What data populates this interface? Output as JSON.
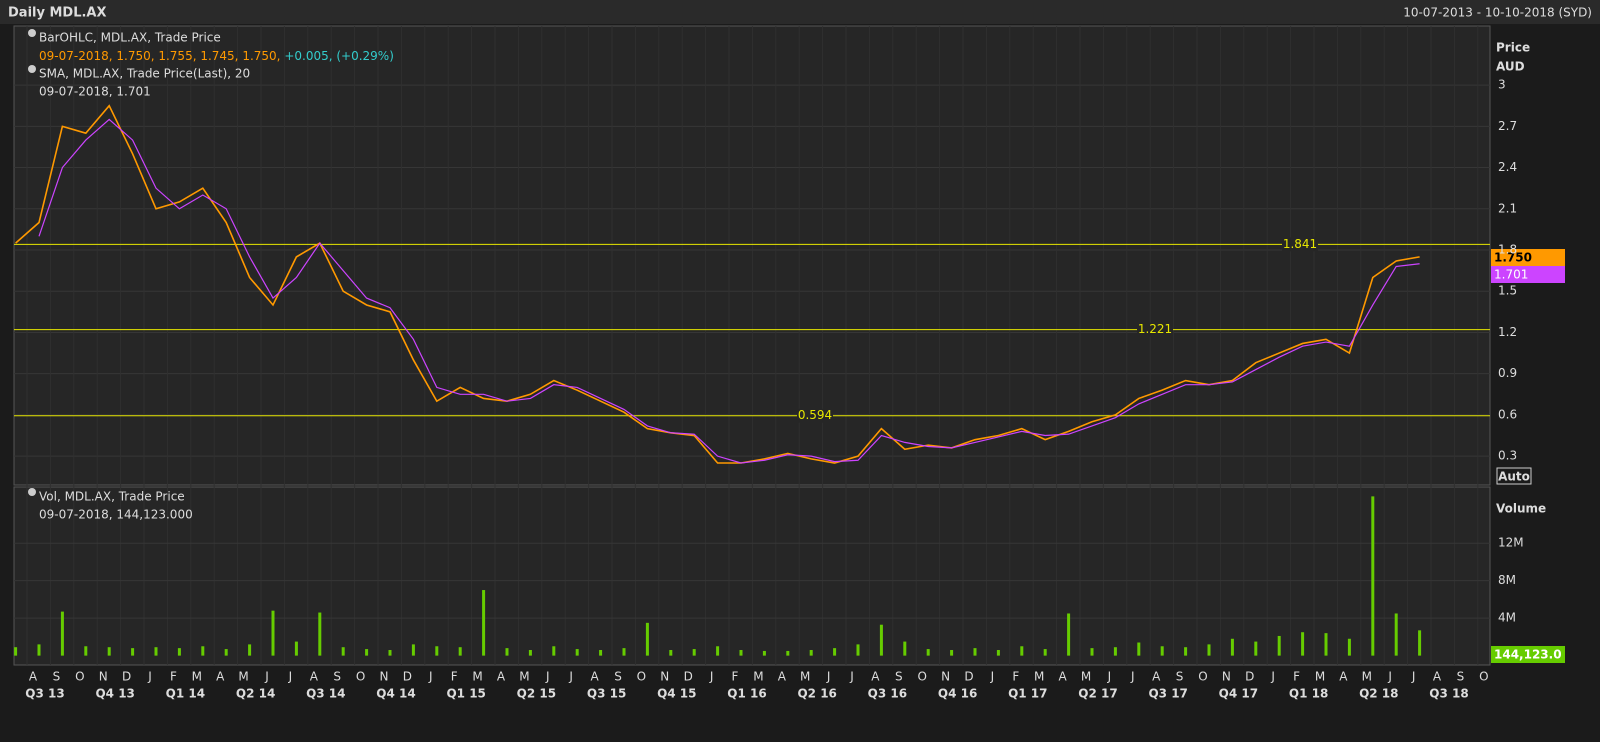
{
  "header": {
    "title": "Daily MDL.AX",
    "range": "10-07-2013 - 10-10-2018 (SYD)"
  },
  "legend": {
    "ohlc_values": "09-07-2018, 1.750, 1.755, 1.745, 1.750,",
    "ohlc_change": "+0.005, (+0.29%)",
    "sma_values": "09-07-2018, 1.701",
    "vol_values": "09-07-2018, 144,123.000"
  },
  "axis_labels": {
    "price": "Price",
    "currency": "AUD",
    "auto": "Auto",
    "volume": "Volume"
  },
  "badges": {
    "last": "1.750",
    "sma": "1.701",
    "volume": "144,123.0"
  },
  "chart_data": [
    {
      "type": "line",
      "x": [
        "2013-07",
        "2013-08",
        "2013-09",
        "2013-10",
        "2013-11",
        "2013-12",
        "2014-01",
        "2014-02",
        "2014-03",
        "2014-04",
        "2014-05",
        "2014-06",
        "2014-07",
        "2014-08",
        "2014-09",
        "2014-10",
        "2014-11",
        "2014-12",
        "2015-01",
        "2015-02",
        "2015-03",
        "2015-04",
        "2015-05",
        "2015-06",
        "2015-07",
        "2015-08",
        "2015-09",
        "2015-10",
        "2015-11",
        "2015-12",
        "2016-01",
        "2016-02",
        "2016-03",
        "2016-04",
        "2016-05",
        "2016-06",
        "2016-07",
        "2016-08",
        "2016-09",
        "2016-10",
        "2016-11",
        "2016-12",
        "2017-01",
        "2017-02",
        "2017-03",
        "2017-04",
        "2017-05",
        "2017-06",
        "2017-07",
        "2017-08",
        "2017-09",
        "2017-10",
        "2017-11",
        "2017-12",
        "2018-01",
        "2018-02",
        "2018-03",
        "2018-04",
        "2018-05",
        "2018-06",
        "2018-07"
      ],
      "series": [
        {
          "name": "BarOHLC, MDL.AX, Trade Price",
          "color": "#ff9900",
          "values": [
            1.85,
            2.0,
            2.7,
            2.65,
            2.85,
            2.5,
            2.1,
            2.15,
            2.25,
            2.0,
            1.6,
            1.4,
            1.75,
            1.85,
            1.5,
            1.4,
            1.35,
            1.0,
            0.7,
            0.8,
            0.72,
            0.7,
            0.75,
            0.85,
            0.78,
            0.7,
            0.62,
            0.5,
            0.47,
            0.45,
            0.25,
            0.25,
            0.28,
            0.32,
            0.28,
            0.25,
            0.3,
            0.5,
            0.35,
            0.38,
            0.36,
            0.42,
            0.45,
            0.5,
            0.42,
            0.48,
            0.55,
            0.6,
            0.72,
            0.78,
            0.85,
            0.82,
            0.85,
            0.98,
            1.05,
            1.12,
            1.15,
            1.05,
            1.6,
            1.72,
            1.75
          ]
        },
        {
          "name": "SMA, MDL.AX, Trade Price(Last),  20",
          "color": "#cc44ff",
          "values": [
            null,
            1.9,
            2.4,
            2.6,
            2.75,
            2.6,
            2.25,
            2.1,
            2.2,
            2.1,
            1.75,
            1.45,
            1.6,
            1.85,
            1.65,
            1.45,
            1.38,
            1.15,
            0.8,
            0.75,
            0.75,
            0.7,
            0.72,
            0.82,
            0.8,
            0.72,
            0.64,
            0.52,
            0.47,
            0.46,
            0.3,
            0.25,
            0.27,
            0.31,
            0.3,
            0.26,
            0.27,
            0.45,
            0.4,
            0.37,
            0.36,
            0.4,
            0.44,
            0.48,
            0.45,
            0.46,
            0.52,
            0.58,
            0.68,
            0.75,
            0.82,
            0.82,
            0.84,
            0.93,
            1.02,
            1.1,
            1.13,
            1.1,
            1.4,
            1.68,
            1.7
          ]
        }
      ],
      "hlines": [
        1.841,
        1.221,
        0.594
      ],
      "hline_color": "#e6e600",
      "ylim": [
        0.09,
        3.43
      ],
      "yticks": [
        0.3,
        0.6,
        0.9,
        1.2,
        1.5,
        1.8,
        2.1,
        2.4,
        2.7,
        3
      ],
      "grid": true,
      "months": [
        "A",
        "S",
        "O",
        "N",
        "D",
        "J",
        "F",
        "M",
        "A",
        "M",
        "J",
        "J",
        "A",
        "S",
        "O",
        "N",
        "D",
        "J",
        "F",
        "M",
        "A",
        "M",
        "J",
        "J",
        "A",
        "S",
        "O",
        "N",
        "D",
        "J",
        "F",
        "M",
        "A",
        "M",
        "J",
        "J",
        "A",
        "S",
        "O",
        "N",
        "D",
        "J",
        "F",
        "M",
        "A",
        "M",
        "J",
        "J",
        "A",
        "S",
        "O",
        "N",
        "D",
        "J",
        "F",
        "M",
        "A",
        "M",
        "J",
        "J",
        "A",
        "S",
        "O"
      ],
      "quarters": [
        "Q3 13",
        "Q4 13",
        "Q1 14",
        "Q2 14",
        "Q3 14",
        "Q4 14",
        "Q1 15",
        "Q2 15",
        "Q3 15",
        "Q4 15",
        "Q1 16",
        "Q2 16",
        "Q3 16",
        "Q4 16",
        "Q1 17",
        "Q2 17",
        "Q3 17",
        "Q4 17",
        "Q1 18",
        "Q2 18",
        "Q3 18"
      ]
    },
    {
      "type": "bar",
      "x": [
        "2013-07",
        "2013-08",
        "2013-09",
        "2013-10",
        "2013-11",
        "2013-12",
        "2014-01",
        "2014-02",
        "2014-03",
        "2014-04",
        "2014-05",
        "2014-06",
        "2014-07",
        "2014-08",
        "2014-09",
        "2014-10",
        "2014-11",
        "2014-12",
        "2015-01",
        "2015-02",
        "2015-03",
        "2015-04",
        "2015-05",
        "2015-06",
        "2015-07",
        "2015-08",
        "2015-09",
        "2015-10",
        "2015-11",
        "2015-12",
        "2016-01",
        "2016-02",
        "2016-03",
        "2016-04",
        "2016-05",
        "2016-06",
        "2016-07",
        "2016-08",
        "2016-09",
        "2016-10",
        "2016-11",
        "2016-12",
        "2017-01",
        "2017-02",
        "2017-03",
        "2017-04",
        "2017-05",
        "2017-06",
        "2017-07",
        "2017-08",
        "2017-09",
        "2017-10",
        "2017-11",
        "2017-12",
        "2018-01",
        "2018-02",
        "2018-03",
        "2018-04",
        "2018-05",
        "2018-06",
        "2018-07"
      ],
      "series": [
        {
          "name": "Vol, MDL.AX, Trade Price",
          "color": "#66cc00",
          "values": [
            900000,
            1200000,
            4700000,
            1000000,
            900000,
            800000,
            900000,
            800000,
            1000000,
            700000,
            1200000,
            4800000,
            1500000,
            4600000,
            900000,
            700000,
            600000,
            1200000,
            1000000,
            900000,
            7000000,
            800000,
            600000,
            1000000,
            700000,
            600000,
            800000,
            3500000,
            600000,
            700000,
            1000000,
            600000,
            500000,
            500000,
            600000,
            800000,
            1200000,
            3300000,
            1500000,
            700000,
            600000,
            800000,
            600000,
            1000000,
            700000,
            4500000,
            800000,
            900000,
            1400000,
            1000000,
            900000,
            1200000,
            1800000,
            1500000,
            2100000,
            2500000,
            2400000,
            1800000,
            17000000,
            4500000,
            2700000
          ]
        }
      ],
      "ylim": [
        -1000000,
        18000000
      ],
      "yticks": [
        {
          "value": 4000000,
          "label": "4M"
        },
        {
          "value": 8000000,
          "label": "8M"
        },
        {
          "value": 12000000,
          "label": "12M"
        }
      ],
      "grid": true
    }
  ]
}
